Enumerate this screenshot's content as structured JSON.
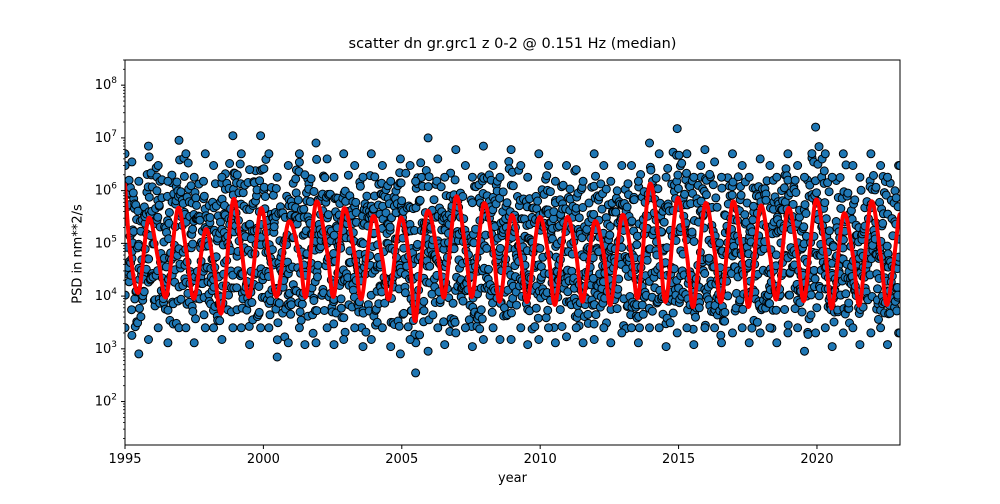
{
  "chart_data": {
    "type": "scatter",
    "title": "scatter dn gr.grc1 z 0-2 @ 0.151 Hz (median)",
    "xlabel": "year",
    "ylabel": "PSD in nm**2/s",
    "xlim": [
      1995,
      2023
    ],
    "ylim": [
      15,
      300000000
    ],
    "yscale": "log",
    "grid": false,
    "x_ticks": [
      1995,
      2000,
      2005,
      2010,
      2015,
      2020
    ],
    "x_tick_labels": [
      "1995",
      "2000",
      "2005",
      "2010",
      "2015",
      "2020"
    ],
    "y_ticks": [
      100,
      1000,
      10000,
      100000,
      1000000,
      10000000,
      100000000
    ],
    "y_tick_labels": [
      {
        "base": "10",
        "exp": "2"
      },
      {
        "base": "10",
        "exp": "3"
      },
      {
        "base": "10",
        "exp": "4"
      },
      {
        "base": "10",
        "exp": "5"
      },
      {
        "base": "10",
        "exp": "6"
      },
      {
        "base": "10",
        "exp": "7"
      },
      {
        "base": "10",
        "exp": "8"
      }
    ],
    "series": [
      {
        "kind": "scatter",
        "color": "#1f77b4",
        "edgecolor": "#000000",
        "envelope": {
          "x": [
            1995.0,
            1995.25,
            1995.5,
            1995.85,
            1996.2,
            1996.55,
            1996.95,
            1997.2,
            1997.5,
            1997.9,
            1998.2,
            1998.5,
            1998.9,
            1999.2,
            1999.5,
            1999.9,
            2000.2,
            2000.5,
            2000.9,
            2001.3,
            2001.5,
            2001.9,
            2002.3,
            2002.55,
            2002.9,
            2003.3,
            2003.6,
            2003.9,
            2004.3,
            2004.6,
            2004.95,
            2005.3,
            2005.5,
            2005.95,
            2006.3,
            2006.55,
            2006.95,
            2007.3,
            2007.55,
            2007.95,
            2008.3,
            2008.55,
            2008.95,
            2009.3,
            2009.55,
            2009.95,
            2010.3,
            2010.55,
            2010.95,
            2011.3,
            2011.55,
            2011.95,
            2012.3,
            2012.55,
            2012.95,
            2013.3,
            2013.55,
            2013.95,
            2014.3,
            2014.55,
            2014.95,
            2015.3,
            2015.55,
            2015.95,
            2016.3,
            2016.55,
            2016.95,
            2017.3,
            2017.55,
            2017.95,
            2018.3,
            2018.55,
            2018.95,
            2019.3,
            2019.55,
            2019.95,
            2020.3,
            2020.55,
            2020.95,
            2021.3,
            2021.55,
            2021.95,
            2022.3,
            2022.55,
            2022.95,
            2023.0
          ],
          "upper": [
            5000000,
            3500000,
            1500000,
            7000000,
            3000000,
            1500000,
            9000000,
            5000000,
            1800000,
            5000000,
            3000000,
            1800000,
            11000000,
            5000000,
            2500000,
            11000000,
            5000000,
            1800000,
            3000000,
            5000000,
            2000000,
            8000000,
            4000000,
            1800000,
            5000000,
            3000000,
            1800000,
            5000000,
            3000000,
            1500000,
            4000000,
            3000000,
            1500000,
            10000000,
            4000000,
            1800000,
            6000000,
            3000000,
            1800000,
            7000000,
            3000000,
            1800000,
            6000000,
            3000000,
            1800000,
            5000000,
            3000000,
            1500000,
            3000000,
            2500000,
            1500000,
            5000000,
            3000000,
            1500000,
            3000000,
            3000000,
            1500000,
            8000000,
            5000000,
            1800000,
            15000000,
            5000000,
            1800000,
            6000000,
            3500000,
            1800000,
            5000000,
            3000000,
            1800000,
            4000000,
            3000000,
            1800000,
            5000000,
            3000000,
            1800000,
            16000000,
            5000000,
            1800000,
            5000000,
            3000000,
            1800000,
            5000000,
            3000000,
            1800000,
            3000000,
            3000000
          ],
          "lower": [
            2500,
            1800,
            800,
            1500,
            2500,
            1300,
            2500,
            2500,
            1300,
            2500,
            2500,
            1500,
            2500,
            2500,
            1200,
            2500,
            2500,
            700,
            1300,
            2500,
            1200,
            1300,
            2500,
            1200,
            1500,
            2500,
            1100,
            1500,
            2500,
            1100,
            800,
            1500,
            350,
            900,
            2500,
            1200,
            2000,
            2500,
            1100,
            1500,
            2500,
            1500,
            1500,
            2500,
            1200,
            1500,
            2500,
            1300,
            1700,
            2500,
            1300,
            1500,
            2500,
            1300,
            2000,
            2500,
            1300,
            2500,
            2500,
            1100,
            2000,
            2500,
            1200,
            2500,
            2500,
            1300,
            2000,
            2500,
            1300,
            2000,
            2500,
            1300,
            2000,
            2500,
            900,
            2000,
            2500,
            1100,
            2000,
            2500,
            1200,
            2000,
            2500,
            1200,
            2000,
            2000
          ]
        }
      },
      {
        "kind": "line",
        "color": "#ff0000",
        "x": [
          1995.0,
          1995.2,
          1995.5,
          1995.85,
          1996.2,
          1996.5,
          1996.9,
          1997.2,
          1997.5,
          1997.9,
          1998.2,
          1998.5,
          1998.9,
          1999.2,
          1999.5,
          1999.9,
          2000.2,
          2000.5,
          2000.9,
          2001.3,
          2001.55,
          2001.9,
          2002.3,
          2002.55,
          2002.9,
          2003.3,
          2003.55,
          2003.95,
          2004.3,
          2004.55,
          2004.95,
          2005.3,
          2005.5,
          2005.9,
          2006.3,
          2006.55,
          2006.95,
          2007.3,
          2007.55,
          2007.95,
          2008.3,
          2008.55,
          2008.95,
          2009.3,
          2009.55,
          2009.95,
          2010.3,
          2010.55,
          2010.95,
          2011.3,
          2011.55,
          2011.95,
          2012.3,
          2012.55,
          2012.95,
          2013.3,
          2013.55,
          2013.95,
          2014.3,
          2014.55,
          2014.95,
          2015.3,
          2015.55,
          2015.95,
          2016.3,
          2016.55,
          2016.95,
          2017.3,
          2017.55,
          2017.95,
          2018.3,
          2018.55,
          2018.95,
          2019.3,
          2019.55,
          2019.95,
          2020.3,
          2020.55,
          2020.95,
          2021.3,
          2021.55,
          2021.95,
          2022.3,
          2022.55,
          2022.95,
          2023.0
        ],
        "y": [
          1300000,
          60000,
          12000,
          300000,
          50000,
          10000,
          450000,
          80000,
          9000,
          180000,
          40000,
          5000,
          650000,
          80000,
          10000,
          450000,
          60000,
          10000,
          250000,
          60000,
          10000,
          600000,
          70000,
          10000,
          450000,
          60000,
          9000,
          320000,
          50000,
          9000,
          300000,
          40000,
          3500,
          380000,
          60000,
          10000,
          750000,
          80000,
          10000,
          550000,
          80000,
          8000,
          330000,
          50000,
          8000,
          300000,
          60000,
          7000,
          300000,
          60000,
          8000,
          250000,
          60000,
          7000,
          330000,
          60000,
          10000,
          1300000,
          100000,
          8000,
          700000,
          60000,
          6500,
          550000,
          70000,
          8000,
          600000,
          60000,
          6500,
          500000,
          60000,
          9000,
          450000,
          60000,
          8500,
          650000,
          70000,
          6000,
          350000,
          60000,
          7000,
          600000,
          60000,
          7000,
          280000,
          250000
        ]
      }
    ]
  }
}
